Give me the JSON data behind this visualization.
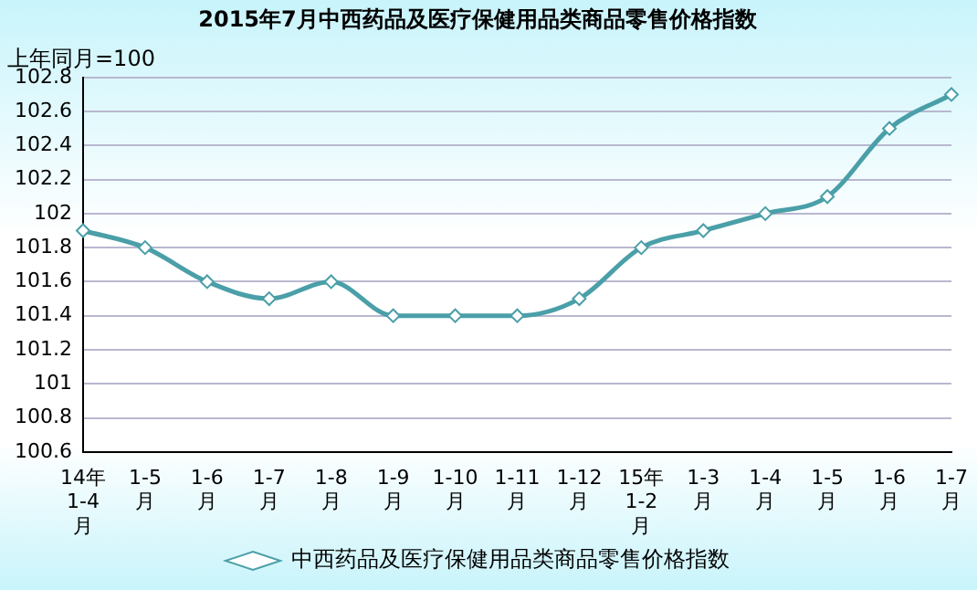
{
  "chart_data": {
    "type": "line",
    "title": "2015年7月中西药品及医疗保健用品类商品零售价格指数",
    "ylabel": "上年同月=100",
    "categories": [
      "14年\n1-4\n月",
      "1-5\n月",
      "1-6\n月",
      "1-7\n月",
      "1-8\n月",
      "1-9\n月",
      "1-10\n月",
      "1-11\n月",
      "1-12\n月",
      "15年\n1-2\n月",
      "1-3\n月",
      "1-4\n月",
      "1-5\n月",
      "1-6\n月",
      "1-7\n月"
    ],
    "series": [
      {
        "name": "中西药品及医疗保健用品类商品零售价格指数",
        "color": "#4a9fa8",
        "values": [
          101.9,
          101.8,
          101.6,
          101.5,
          101.6,
          101.4,
          101.4,
          101.4,
          101.5,
          101.8,
          101.9,
          102.0,
          102.1,
          102.5,
          102.7
        ]
      }
    ],
    "ylim": [
      100.6,
      102.8
    ],
    "yticks": [
      100.6,
      100.8,
      101,
      101.2,
      101.4,
      101.6,
      101.8,
      102,
      102.2,
      102.4,
      102.6,
      102.8
    ],
    "grid": "y",
    "legend": "bottom",
    "marker": "diamond",
    "line_style": "solid"
  }
}
